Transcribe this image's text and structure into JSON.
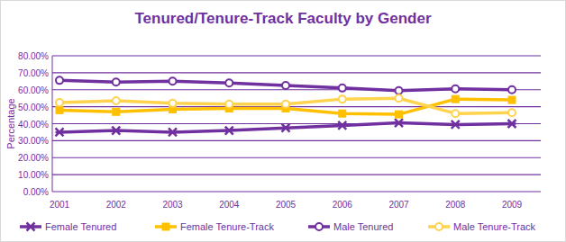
{
  "chart_data": {
    "type": "line",
    "title": "Tenured/Tenure-Track Faculty by Gender",
    "y_label": "Percentage",
    "categories": [
      "2001",
      "2002",
      "2003",
      "2004",
      "2005",
      "2006",
      "2007",
      "2008",
      "2009"
    ],
    "series": [
      {
        "name": "Female Tenured",
        "color": "#7030a0",
        "marker": "star",
        "values": [
          35,
          36,
          35,
          36,
          37.5,
          39,
          40.5,
          39.5,
          40
        ]
      },
      {
        "name": "Female Tenure-Track",
        "color": "#ffc000",
        "marker": "square",
        "values": [
          48,
          47,
          48.5,
          49,
          49,
          46,
          45.5,
          54.5,
          54
        ]
      },
      {
        "name": "Male Tenured",
        "color": "#7030a0",
        "marker": "circle",
        "values": [
          65.5,
          64.5,
          65,
          64,
          62.5,
          61,
          59.5,
          60.5,
          60
        ]
      },
      {
        "name": "Male Tenure-Track",
        "color": "#ffd34d",
        "marker": "circle",
        "values": [
          52.5,
          53.5,
          52,
          51.5,
          51.5,
          54.5,
          55,
          46,
          46.5
        ]
      }
    ],
    "ylim": [
      0,
      80
    ],
    "yticks": [
      {
        "value": 0,
        "label": "0.00%"
      },
      {
        "value": 10,
        "label": "10.00%"
      },
      {
        "value": 20,
        "label": "20.00%"
      },
      {
        "value": 30,
        "label": "30.00%"
      },
      {
        "value": 40,
        "label": "40.00%"
      },
      {
        "value": 50,
        "label": "50.00%"
      },
      {
        "value": 60,
        "label": "60.00%"
      },
      {
        "value": 70,
        "label": "70.00%"
      },
      {
        "value": 80,
        "label": "80.00%"
      }
    ],
    "grid": true,
    "legend": "bottom"
  }
}
